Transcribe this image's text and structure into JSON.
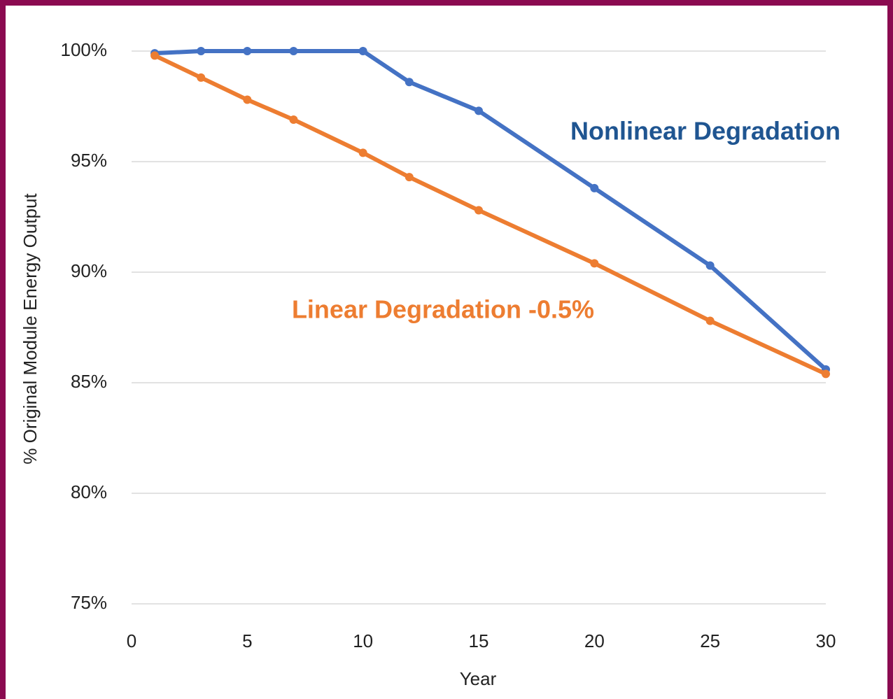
{
  "chart_data": {
    "type": "line",
    "x_label": "Year",
    "y_label": "% Original Module Energy Output",
    "x": [
      1,
      3,
      5,
      7,
      10,
      12,
      15,
      20,
      25,
      30
    ],
    "series": [
      {
        "name": "Nonlinear Degradation",
        "color": "#4472c4",
        "values": [
          99.9,
          100,
          100,
          100,
          100,
          98.6,
          97.3,
          93.8,
          90.3,
          85.6
        ]
      },
      {
        "name": "Linear Degradation -0.5%",
        "color": "#ed7d31",
        "values": [
          99.8,
          98.8,
          97.8,
          96.9,
          95.4,
          94.3,
          92.8,
          90.4,
          87.8,
          85.4
        ]
      }
    ],
    "xlim": [
      0,
      30
    ],
    "xticks": [
      0,
      5,
      10,
      15,
      20,
      25,
      30
    ],
    "ylim": [
      75,
      100
    ],
    "yticks": [
      {
        "value": 75,
        "label": "75%"
      },
      {
        "value": 80,
        "label": "80%"
      },
      {
        "value": 85,
        "label": "85%"
      },
      {
        "value": 90,
        "label": "90%"
      },
      {
        "value": 95,
        "label": "95%"
      },
      {
        "value": 100,
        "label": "100%"
      }
    ],
    "grid": true
  }
}
